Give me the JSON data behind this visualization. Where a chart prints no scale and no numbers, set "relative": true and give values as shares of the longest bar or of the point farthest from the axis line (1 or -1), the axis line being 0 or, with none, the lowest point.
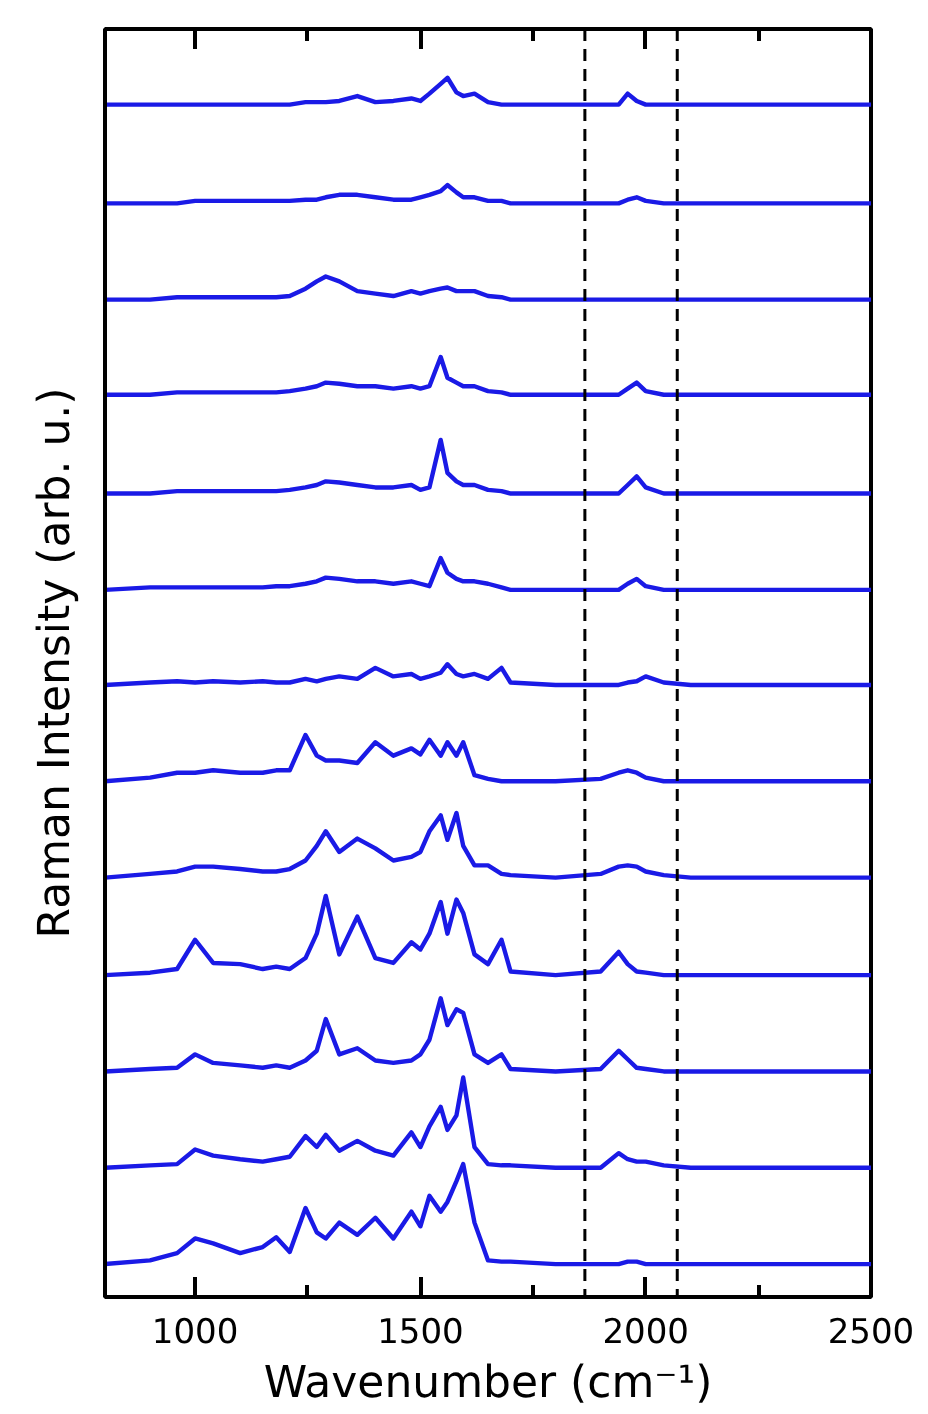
{
  "chart_data": {
    "type": "line",
    "xlabel": "Wavenumber (cm⁻¹)",
    "ylabel": "Raman Intensity (arb. u.)",
    "relative": true,
    "tick_labels": "x",
    "grid": false,
    "line_style": "solid",
    "color": "#1a1ae6",
    "xlim": [
      800,
      2500
    ],
    "xticks": [
      1000,
      {
        "value": 1250,
        "label": null
      },
      1500,
      {
        "value": 1750,
        "label": null
      },
      2000,
      {
        "value": 2250,
        "label": null
      },
      2500
    ],
    "ref_lines": [
      {
        "axis": "x",
        "value": 1865,
        "label": null,
        "color": "#000000",
        "line_style": "dashed"
      },
      {
        "axis": "x",
        "value": 2070,
        "label": null,
        "color": "#000000",
        "line_style": "dashed"
      }
    ],
    "x": [
      800,
      900,
      960,
      1000,
      1040,
      1100,
      1150,
      1180,
      1210,
      1245,
      1270,
      1290,
      1320,
      1360,
      1400,
      1440,
      1480,
      1500,
      1520,
      1545,
      1560,
      1580,
      1595,
      1620,
      1650,
      1680,
      1700,
      1800,
      1900,
      1940,
      1960,
      1980,
      2000,
      2040,
      2100,
      2500
    ],
    "series": [
      {
        "values": [
          0.978,
          0.978,
          0.978,
          0.978,
          0.978,
          0.978,
          0.978,
          0.978,
          0.978,
          0.98,
          0.98,
          0.98,
          0.981,
          0.985,
          0.98,
          0.981,
          0.983,
          0.981,
          0.987,
          0.995,
          1.0,
          0.988,
          0.985,
          0.987,
          0.98,
          0.978,
          0.978,
          0.978,
          0.978,
          0.978,
          0.987,
          0.981,
          0.978,
          0.978,
          0.978,
          0.978
        ]
      },
      {
        "values": [
          0.897,
          0.897,
          0.897,
          0.899,
          0.899,
          0.899,
          0.899,
          0.899,
          0.899,
          0.9,
          0.9,
          0.902,
          0.904,
          0.904,
          0.902,
          0.9,
          0.9,
          0.902,
          0.904,
          0.907,
          0.912,
          0.906,
          0.902,
          0.902,
          0.899,
          0.899,
          0.897,
          0.897,
          0.897,
          0.897,
          0.9,
          0.902,
          0.899,
          0.897,
          0.897,
          0.897
        ]
      },
      {
        "values": [
          0.818,
          0.818,
          0.82,
          0.82,
          0.82,
          0.82,
          0.82,
          0.82,
          0.821,
          0.827,
          0.833,
          0.837,
          0.833,
          0.825,
          0.823,
          0.821,
          0.825,
          0.823,
          0.825,
          0.827,
          0.828,
          0.825,
          0.825,
          0.825,
          0.821,
          0.82,
          0.818,
          0.818,
          0.818,
          0.818,
          0.818,
          0.818,
          0.818,
          0.818,
          0.818,
          0.818
        ]
      },
      {
        "values": [
          0.74,
          0.74,
          0.742,
          0.742,
          0.742,
          0.742,
          0.742,
          0.742,
          0.743,
          0.745,
          0.747,
          0.75,
          0.749,
          0.747,
          0.747,
          0.745,
          0.747,
          0.745,
          0.747,
          0.771,
          0.754,
          0.75,
          0.747,
          0.747,
          0.743,
          0.742,
          0.74,
          0.74,
          0.74,
          0.74,
          0.745,
          0.75,
          0.743,
          0.74,
          0.74,
          0.74
        ]
      },
      {
        "values": [
          0.659,
          0.659,
          0.661,
          0.661,
          0.661,
          0.661,
          0.661,
          0.661,
          0.662,
          0.664,
          0.666,
          0.669,
          0.668,
          0.666,
          0.664,
          0.664,
          0.666,
          0.662,
          0.664,
          0.703,
          0.676,
          0.669,
          0.666,
          0.666,
          0.662,
          0.661,
          0.659,
          0.659,
          0.659,
          0.659,
          0.666,
          0.673,
          0.664,
          0.659,
          0.659,
          0.659
        ]
      },
      {
        "values": [
          0.58,
          0.582,
          0.582,
          0.582,
          0.582,
          0.582,
          0.582,
          0.583,
          0.583,
          0.585,
          0.587,
          0.59,
          0.589,
          0.587,
          0.587,
          0.585,
          0.587,
          0.585,
          0.583,
          0.606,
          0.594,
          0.589,
          0.587,
          0.587,
          0.585,
          0.582,
          0.58,
          0.58,
          0.58,
          0.58,
          0.585,
          0.589,
          0.583,
          0.58,
          0.58,
          0.58
        ]
      },
      {
        "values": [
          0.502,
          0.504,
          0.505,
          0.504,
          0.505,
          0.504,
          0.505,
          0.504,
          0.504,
          0.507,
          0.505,
          0.507,
          0.509,
          0.507,
          0.516,
          0.509,
          0.511,
          0.507,
          0.509,
          0.512,
          0.519,
          0.511,
          0.509,
          0.511,
          0.507,
          0.516,
          0.504,
          0.502,
          0.502,
          0.502,
          0.504,
          0.505,
          0.509,
          0.504,
          0.502,
          0.502
        ]
      },
      {
        "values": [
          0.423,
          0.426,
          0.43,
          0.43,
          0.432,
          0.43,
          0.43,
          0.432,
          0.432,
          0.461,
          0.444,
          0.44,
          0.44,
          0.438,
          0.455,
          0.444,
          0.45,
          0.445,
          0.457,
          0.444,
          0.455,
          0.444,
          0.455,
          0.428,
          0.425,
          0.423,
          0.423,
          0.423,
          0.425,
          0.43,
          0.432,
          0.43,
          0.426,
          0.423,
          0.423,
          0.423
        ]
      },
      {
        "values": [
          0.344,
          0.347,
          0.349,
          0.353,
          0.353,
          0.351,
          0.349,
          0.349,
          0.351,
          0.358,
          0.37,
          0.382,
          0.365,
          0.376,
          0.368,
          0.358,
          0.361,
          0.365,
          0.382,
          0.395,
          0.375,
          0.397,
          0.37,
          0.354,
          0.354,
          0.347,
          0.346,
          0.344,
          0.347,
          0.353,
          0.354,
          0.353,
          0.349,
          0.346,
          0.344,
          0.344
        ]
      },
      {
        "values": [
          0.264,
          0.266,
          0.269,
          0.293,
          0.274,
          0.273,
          0.269,
          0.271,
          0.269,
          0.278,
          0.298,
          0.329,
          0.281,
          0.312,
          0.278,
          0.274,
          0.291,
          0.285,
          0.298,
          0.324,
          0.298,
          0.326,
          0.315,
          0.281,
          0.273,
          0.293,
          0.267,
          0.264,
          0.267,
          0.283,
          0.273,
          0.267,
          0.266,
          0.264,
          0.264,
          0.264
        ]
      },
      {
        "values": [
          0.185,
          0.187,
          0.188,
          0.199,
          0.192,
          0.19,
          0.188,
          0.19,
          0.188,
          0.194,
          0.202,
          0.228,
          0.199,
          0.204,
          0.194,
          0.192,
          0.194,
          0.199,
          0.211,
          0.245,
          0.223,
          0.236,
          0.233,
          0.199,
          0.192,
          0.199,
          0.187,
          0.185,
          0.187,
          0.202,
          0.195,
          0.188,
          0.187,
          0.185,
          0.185,
          0.185
        ]
      },
      {
        "values": [
          0.106,
          0.108,
          0.109,
          0.121,
          0.116,
          0.113,
          0.111,
          0.113,
          0.115,
          0.132,
          0.123,
          0.133,
          0.12,
          0.128,
          0.12,
          0.116,
          0.135,
          0.123,
          0.14,
          0.156,
          0.137,
          0.149,
          0.18,
          0.123,
          0.109,
          0.108,
          0.108,
          0.106,
          0.106,
          0.118,
          0.113,
          0.111,
          0.111,
          0.108,
          0.106,
          0.106
        ]
      },
      {
        "values": [
          0.027,
          0.03,
          0.036,
          0.048,
          0.044,
          0.036,
          0.041,
          0.049,
          0.037,
          0.073,
          0.053,
          0.048,
          0.061,
          0.051,
          0.065,
          0.048,
          0.07,
          0.058,
          0.083,
          0.07,
          0.078,
          0.095,
          0.109,
          0.061,
          0.03,
          0.029,
          0.029,
          0.027,
          0.027,
          0.027,
          0.029,
          0.029,
          0.027,
          0.027,
          0.027,
          0.027
        ]
      }
    ]
  }
}
